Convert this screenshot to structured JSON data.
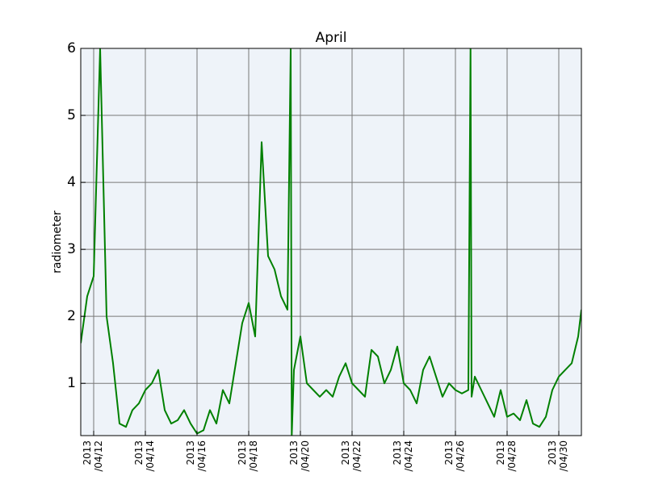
{
  "chart_data": {
    "type": "line",
    "title": "April",
    "y_label": "radiometer",
    "x": [
      "2013-04-11T12:00",
      "2013-04-11T18:00",
      "2013-04-12T00:00",
      "2013-04-12T06:00",
      "2013-04-12T12:00",
      "2013-04-12T18:00",
      "2013-04-13T00:00",
      "2013-04-13T06:00",
      "2013-04-13T12:00",
      "2013-04-13T18:00",
      "2013-04-14T00:00",
      "2013-04-14T06:00",
      "2013-04-14T12:00",
      "2013-04-14T18:00",
      "2013-04-15T00:00",
      "2013-04-15T06:00",
      "2013-04-15T12:00",
      "2013-04-15T18:00",
      "2013-04-16T00:00",
      "2013-04-16T06:00",
      "2013-04-16T12:00",
      "2013-04-16T18:00",
      "2013-04-17T00:00",
      "2013-04-17T06:00",
      "2013-04-17T12:00",
      "2013-04-17T18:00",
      "2013-04-18T00:00",
      "2013-04-18T06:00",
      "2013-04-18T12:00",
      "2013-04-18T18:00",
      "2013-04-19T00:00",
      "2013-04-19T06:00",
      "2013-04-19T12:00",
      "2013-04-19T15:00",
      "2013-04-19T16:00",
      "2013-04-19T18:00",
      "2013-04-20T00:00",
      "2013-04-20T06:00",
      "2013-04-20T12:00",
      "2013-04-20T18:00",
      "2013-04-21T00:00",
      "2013-04-21T06:00",
      "2013-04-21T12:00",
      "2013-04-21T18:00",
      "2013-04-22T00:00",
      "2013-04-22T06:00",
      "2013-04-22T12:00",
      "2013-04-22T18:00",
      "2013-04-23T00:00",
      "2013-04-23T06:00",
      "2013-04-23T12:00",
      "2013-04-23T18:00",
      "2013-04-24T00:00",
      "2013-04-24T06:00",
      "2013-04-24T12:00",
      "2013-04-24T18:00",
      "2013-04-25T00:00",
      "2013-04-25T06:00",
      "2013-04-25T12:00",
      "2013-04-25T18:00",
      "2013-04-26T00:00",
      "2013-04-26T06:00",
      "2013-04-26T12:00",
      "2013-04-26T14:00",
      "2013-04-26T15:00",
      "2013-04-26T18:00",
      "2013-04-27T00:00",
      "2013-04-27T06:00",
      "2013-04-27T12:00",
      "2013-04-27T18:00",
      "2013-04-28T00:00",
      "2013-04-28T06:00",
      "2013-04-28T12:00",
      "2013-04-28T18:00",
      "2013-04-29T00:00",
      "2013-04-29T06:00",
      "2013-04-29T12:00",
      "2013-04-29T18:00",
      "2013-04-30T00:00",
      "2013-04-30T06:00",
      "2013-04-30T12:00",
      "2013-04-30T18:00",
      "2013-04-30T21:00"
    ],
    "series": [
      {
        "color": "#008000",
        "values": [
          1.6,
          2.3,
          2.6,
          6.0,
          2.0,
          1.3,
          0.4,
          0.35,
          0.6,
          0.7,
          0.9,
          1.0,
          1.2,
          0.6,
          0.4,
          0.45,
          0.6,
          0.4,
          0.25,
          0.3,
          0.6,
          0.4,
          0.9,
          0.7,
          1.3,
          1.9,
          2.2,
          1.7,
          4.6,
          2.9,
          2.7,
          2.3,
          2.1,
          6.0,
          0.22,
          1.2,
          1.7,
          1.0,
          0.9,
          0.8,
          0.9,
          0.8,
          1.1,
          1.3,
          1.0,
          0.9,
          0.8,
          1.5,
          1.4,
          1.0,
          1.2,
          1.55,
          1.0,
          0.9,
          0.7,
          1.2,
          1.4,
          1.1,
          0.8,
          1.0,
          0.9,
          0.85,
          0.9,
          6.0,
          0.8,
          1.1,
          0.9,
          0.7,
          0.5,
          0.9,
          0.5,
          0.55,
          0.45,
          0.75,
          0.4,
          0.35,
          0.5,
          0.9,
          1.1,
          1.2,
          1.3,
          1.7,
          2.1
        ]
      }
    ],
    "xlim": [
      "2013-04-11T12:00",
      "2013-04-30T21:00"
    ],
    "xticks": [
      {
        "value": "2013-04-12T00:00",
        "label": [
          "2013",
          "/04/12"
        ]
      },
      {
        "value": "2013-04-14T00:00",
        "label": [
          "2013",
          "/04/14"
        ]
      },
      {
        "value": "2013-04-16T00:00",
        "label": [
          "2013",
          "/04/16"
        ]
      },
      {
        "value": "2013-04-18T00:00",
        "label": [
          "2013",
          "/04/18"
        ]
      },
      {
        "value": "2013-04-20T00:00",
        "label": [
          "2013",
          "/04/20"
        ]
      },
      {
        "value": "2013-04-22T00:00",
        "label": [
          "2013",
          "/04/22"
        ]
      },
      {
        "value": "2013-04-24T00:00",
        "label": [
          "2013",
          "/04/24"
        ]
      },
      {
        "value": "2013-04-26T00:00",
        "label": [
          "2013",
          "/04/26"
        ]
      },
      {
        "value": "2013-04-28T00:00",
        "label": [
          "2013",
          "/04/28"
        ]
      },
      {
        "value": "2013-04-30T00:00",
        "label": [
          "2013",
          "/04/30"
        ]
      }
    ],
    "ylim": [
      0.22,
      6
    ],
    "yticks": [
      1,
      2,
      3,
      4,
      5,
      6
    ],
    "grid": true
  }
}
